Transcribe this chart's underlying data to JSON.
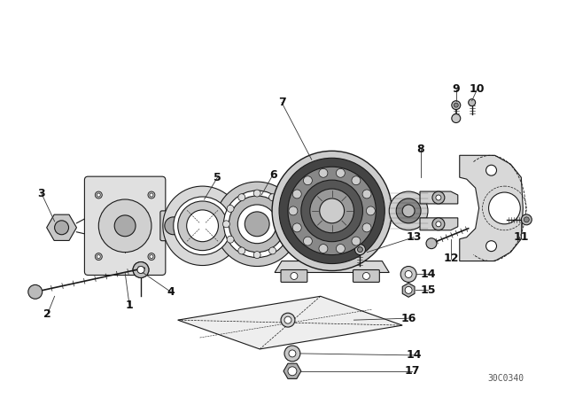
{
  "background_color": "#ffffff",
  "part_number_code": "30C0340",
  "fig_width": 6.4,
  "fig_height": 4.48,
  "dpi": 100,
  "line_color": "#1a1a1a",
  "gray_light": "#d8d8d8",
  "gray_mid": "#b0b0b0",
  "gray_dark": "#888888"
}
